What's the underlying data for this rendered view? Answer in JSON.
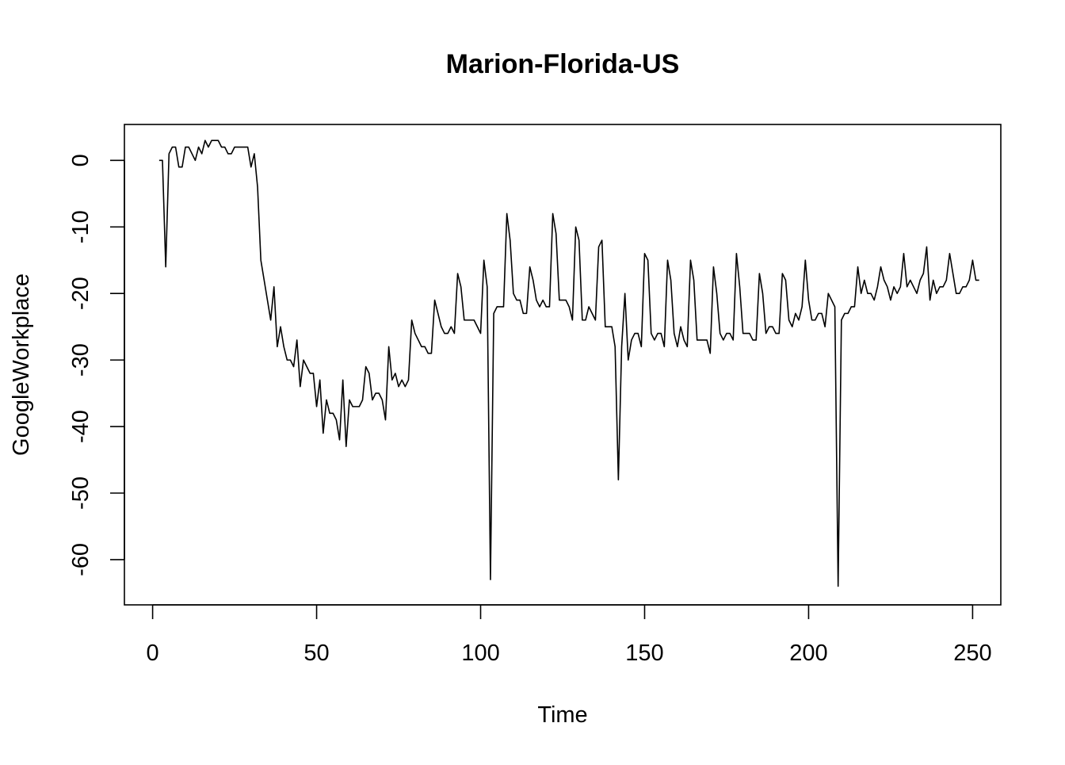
{
  "chart_data": {
    "type": "line",
    "title": "Marion-Florida-US",
    "xlabel": "Time",
    "ylabel": "GoogleWorkplace",
    "xlim": [
      -8.6,
      258.6
    ],
    "ylim": [
      -66.8,
      5.4
    ],
    "xticks": [
      0,
      50,
      100,
      150,
      200,
      250
    ],
    "yticks": [
      0,
      -10,
      -20,
      -30,
      -40,
      -50,
      -60
    ],
    "xtick_labels": [
      "0",
      "50",
      "100",
      "150",
      "200",
      "250"
    ],
    "ytick_labels": [
      "0",
      "-10",
      "-20",
      "-30",
      "-40",
      "-50",
      "-60"
    ],
    "grid": false,
    "line_color": "#000000",
    "series": [
      {
        "x_start": 2,
        "values": [
          0,
          0,
          -16,
          1,
          2,
          2,
          -1,
          -1,
          2,
          2,
          1,
          0,
          2,
          1,
          3,
          2,
          3,
          3,
          3,
          2,
          2,
          1,
          1,
          2,
          2,
          2,
          2,
          2,
          -1,
          1,
          -4,
          -15,
          -18,
          -21,
          -24,
          -19,
          -28,
          -25,
          -28,
          -30,
          -30,
          -31,
          -27,
          -34,
          -30,
          -31,
          -32,
          -32,
          -37,
          -33,
          -41,
          -36,
          -38,
          -38,
          -39,
          -42,
          -33,
          -43,
          -36,
          -37,
          -37,
          -37,
          -36,
          -31,
          -32,
          -36,
          -35,
          -35,
          -36,
          -39,
          -28,
          -33,
          -32,
          -34,
          -33,
          -34,
          -33,
          -24,
          -26,
          -27,
          -28,
          -28,
          -29,
          -29,
          -21,
          -23,
          -25,
          -26,
          -26,
          -25,
          -26,
          -17,
          -19,
          -24,
          -24,
          -24,
          -24,
          -25,
          -26,
          -15,
          -19,
          -63,
          -23,
          -22,
          -22,
          -22,
          -8,
          -12,
          -20,
          -21,
          -21,
          -23,
          -23,
          -16,
          -18,
          -21,
          -22,
          -21,
          -22,
          -22,
          -8,
          -11,
          -21,
          -21,
          -21,
          -22,
          -24,
          -10,
          -12,
          -24,
          -24,
          -22,
          -23,
          -24,
          -13,
          -12,
          -25,
          -25,
          -25,
          -28,
          -48,
          -28,
          -20,
          -30,
          -27,
          -26,
          -26,
          -28,
          -14,
          -15,
          -26,
          -27,
          -26,
          -26,
          -28,
          -15,
          -18,
          -26,
          -28,
          -25,
          -27,
          -28,
          -15,
          -18,
          -27,
          -27,
          -27,
          -27,
          -29,
          -16,
          -20,
          -26,
          -27,
          -26,
          -26,
          -27,
          -14,
          -19,
          -26,
          -26,
          -26,
          -27,
          -27,
          -17,
          -20,
          -26,
          -25,
          -25,
          -26,
          -26,
          -17,
          -18,
          -24,
          -25,
          -23,
          -24,
          -22,
          -15,
          -21,
          -24,
          -24,
          -23,
          -23,
          -25,
          -20,
          -21,
          -22,
          -64,
          -24,
          -23,
          -23,
          -22,
          -22,
          -16,
          -20,
          -18,
          -20,
          -20,
          -21,
          -19,
          -16,
          -18,
          -19,
          -21,
          -19,
          -20,
          -19,
          -14,
          -19,
          -18,
          -19,
          -20,
          -18,
          -17,
          -13,
          -21,
          -18,
          -20,
          -19,
          -19,
          -18,
          -14,
          -17,
          -20,
          -20,
          -19,
          -19,
          -18,
          -15,
          -18,
          -18
        ]
      }
    ]
  }
}
